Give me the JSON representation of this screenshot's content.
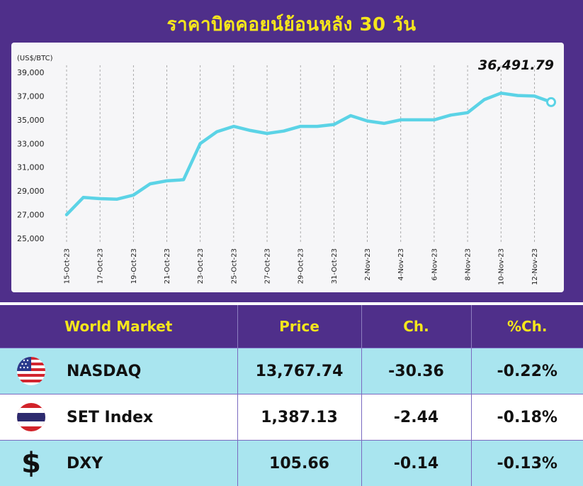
{
  "title": "ราคาบิตคอยน์ย้อนหลัง 30 วัน",
  "chart_data": {
    "type": "line",
    "ylabel": "(US$/BTC)",
    "ylim": [
      25000,
      39000
    ],
    "yticks": [
      "25,000",
      "27,000",
      "29,000",
      "31,000",
      "33,000",
      "35,000",
      "37,000",
      "39,000"
    ],
    "xtick_labels": [
      "15-Oct-23",
      "17-Oct-23",
      "19-Oct-23",
      "21-Oct-23",
      "23-Oct-23",
      "25-Oct-23",
      "27-Oct-23",
      "29-Oct-23",
      "31-Oct-23",
      "2-Nov-23",
      "4-Nov-23",
      "6-Nov-23",
      "8-Nov-23",
      "10-Nov-23",
      "12-Nov-23"
    ],
    "x": [
      "15-Oct-23",
      "16-Oct-23",
      "17-Oct-23",
      "18-Oct-23",
      "19-Oct-23",
      "20-Oct-23",
      "21-Oct-23",
      "22-Oct-23",
      "23-Oct-23",
      "24-Oct-23",
      "25-Oct-23",
      "26-Oct-23",
      "27-Oct-23",
      "28-Oct-23",
      "29-Oct-23",
      "30-Oct-23",
      "31-Oct-23",
      "1-Nov-23",
      "2-Nov-23",
      "3-Nov-23",
      "4-Nov-23",
      "5-Nov-23",
      "6-Nov-23",
      "7-Nov-23",
      "8-Nov-23",
      "9-Nov-23",
      "10-Nov-23",
      "11-Nov-23",
      "12-Nov-23",
      "13-Nov-23"
    ],
    "values": [
      27000,
      28450,
      28350,
      28300,
      28650,
      29600,
      29850,
      29950,
      33000,
      34000,
      34450,
      34100,
      33850,
      34050,
      34450,
      34450,
      34600,
      35350,
      34900,
      34700,
      35000,
      35000,
      35000,
      35400,
      35600,
      36700,
      37250,
      37050,
      37000,
      36491.79
    ],
    "last_value_label": "36,491.79",
    "grid": "vertical dashed",
    "colors": {
      "line": "#5bd3e6",
      "background": "#f6f6f8",
      "grid": "#999999"
    }
  },
  "table": {
    "headers": [
      "World Market",
      "Price",
      "Ch.",
      "%Ch."
    ],
    "rows": [
      {
        "icon": "us-flag-icon",
        "name": "NASDAQ",
        "price": "13,767.74",
        "ch": "-30.36",
        "pct": "-0.22%"
      },
      {
        "icon": "thai-flag-icon",
        "name": "SET Index",
        "price": "1,387.13",
        "ch": "-2.44",
        "pct": "-0.18%"
      },
      {
        "icon": "dollar-icon",
        "name": "DXY",
        "price": "105.66",
        "ch": "-0.14",
        "pct": "-0.13%",
        "symbol": "$"
      }
    ]
  },
  "colors": {
    "header_bg": "#4f2f8a",
    "header_text": "#f5e61c",
    "row_cyan": "#a9e5ef",
    "row_white": "#ffffff"
  }
}
